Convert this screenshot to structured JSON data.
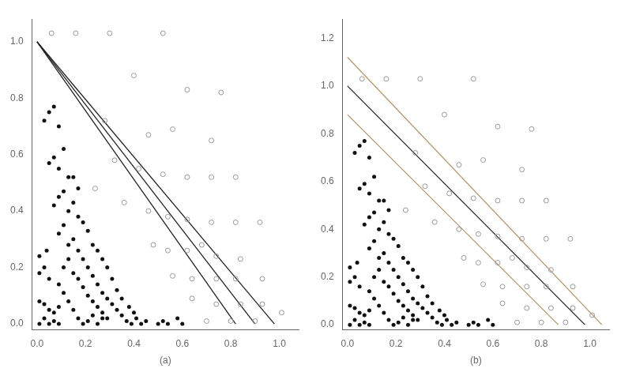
{
  "chart_data": [
    {
      "type": "scatter",
      "xlabel": "(a)",
      "xlim": [
        -0.02,
        1.08
      ],
      "ylim": [
        -0.02,
        1.08
      ],
      "xticks": [
        {
          "value": 0,
          "label": "0.0"
        },
        0.2,
        0.4,
        0.6,
        0.8,
        {
          "value": 1,
          "label": "1.0"
        }
      ],
      "yticks": [
        {
          "value": 0,
          "label": "0.0"
        },
        0.2,
        0.4,
        0.6,
        0.8,
        {
          "value": 1,
          "label": "1.0"
        }
      ],
      "grid": false,
      "series": [
        {
          "color": "#111111",
          "marker": "circle",
          "x": [
            0.01,
            0.03,
            0.05,
            0.07,
            0.09,
            0.01,
            0.03,
            0.05,
            0.07,
            0.09,
            0.01,
            0.03,
            0.05,
            0.01,
            0.04,
            0.09,
            0.11,
            0.13,
            0.15,
            0.17,
            0.19,
            0.21,
            0.23,
            0.25,
            0.27,
            0.11,
            0.13,
            0.15,
            0.17,
            0.19,
            0.21,
            0.23,
            0.25,
            0.27,
            0.29,
            0.09,
            0.11,
            0.13,
            0.15,
            0.17,
            0.19,
            0.21,
            0.23,
            0.25,
            0.27,
            0.29,
            0.31,
            0.33,
            0.35,
            0.37,
            0.39,
            0.41,
            0.43,
            0.45,
            0.07,
            0.09,
            0.11,
            0.13,
            0.15,
            0.17,
            0.19,
            0.21,
            0.23,
            0.25,
            0.27,
            0.29,
            0.31,
            0.33,
            0.35,
            0.05,
            0.07,
            0.09,
            0.11,
            0.13,
            0.15,
            0.17,
            0.03,
            0.05,
            0.07,
            0.09,
            0.5,
            0.52,
            0.54,
            0.58,
            0.6,
            0.38,
            0.4
          ],
          "y": [
            0.0,
            0.02,
            0.0,
            0.01,
            0.0,
            0.08,
            0.07,
            0.05,
            0.04,
            0.06,
            0.18,
            0.2,
            0.16,
            0.24,
            0.26,
            0.14,
            0.11,
            0.08,
            0.05,
            0.02,
            0.0,
            0.01,
            0.03,
            0.0,
            0.02,
            0.2,
            0.23,
            0.18,
            0.16,
            0.13,
            0.1,
            0.08,
            0.06,
            0.04,
            0.02,
            0.32,
            0.35,
            0.28,
            0.3,
            0.26,
            0.23,
            0.2,
            0.17,
            0.14,
            0.11,
            0.09,
            0.07,
            0.05,
            0.03,
            0.01,
            0.0,
            0.02,
            0.0,
            0.01,
            0.42,
            0.45,
            0.47,
            0.4,
            0.43,
            0.38,
            0.36,
            0.33,
            0.28,
            0.26,
            0.23,
            0.2,
            0.16,
            0.12,
            0.09,
            0.57,
            0.59,
            0.55,
            0.62,
            0.52,
            0.52,
            0.48,
            0.72,
            0.75,
            0.77,
            0.7,
            0.0,
            0.01,
            0.0,
            0.02,
            0.0,
            0.06,
            0.04
          ]
        },
        {
          "color": "#999999",
          "marker": "hollow",
          "x": [
            0.06,
            0.16,
            0.3,
            0.52,
            0.4,
            0.62,
            0.76,
            0.28,
            0.46,
            0.56,
            0.72,
            0.32,
            0.42,
            0.52,
            0.62,
            0.72,
            0.82,
            0.24,
            0.36,
            0.46,
            0.54,
            0.62,
            0.72,
            0.82,
            0.92,
            0.48,
            0.54,
            0.62,
            0.68,
            0.74,
            0.84,
            0.56,
            0.64,
            0.74,
            0.82,
            0.93,
            0.64,
            0.74,
            0.84,
            0.93,
            0.7,
            0.8,
            0.9,
            1.01
          ],
          "y": [
            1.03,
            1.03,
            1.03,
            1.03,
            0.88,
            0.83,
            0.82,
            0.72,
            0.67,
            0.69,
            0.65,
            0.58,
            0.55,
            0.53,
            0.52,
            0.52,
            0.52,
            0.48,
            0.43,
            0.4,
            0.38,
            0.37,
            0.36,
            0.36,
            0.36,
            0.28,
            0.26,
            0.26,
            0.28,
            0.24,
            0.23,
            0.17,
            0.16,
            0.16,
            0.16,
            0.16,
            0.09,
            0.07,
            0.07,
            0.07,
            0.01,
            0.01,
            0.01,
            0.04
          ]
        },
        {
          "type": "line",
          "color": "#222222",
          "x": [
            0.0,
            0.82
          ],
          "y": [
            1.0,
            0.0
          ]
        },
        {
          "type": "line",
          "color": "#222222",
          "x": [
            0.0,
            0.9
          ],
          "y": [
            1.0,
            0.0
          ]
        },
        {
          "type": "line",
          "color": "#222222",
          "x": [
            0.0,
            0.98
          ],
          "y": [
            1.0,
            0.0
          ]
        }
      ]
    },
    {
      "type": "scatter",
      "xlabel": "(b)",
      "xlim": [
        -0.02,
        1.08
      ],
      "ylim": [
        -0.02,
        1.28
      ],
      "xticks": [
        {
          "value": 0,
          "label": "0.0"
        },
        0.2,
        0.4,
        0.6,
        0.8,
        {
          "value": 1,
          "label": "1.0"
        }
      ],
      "yticks": [
        {
          "value": 0,
          "label": "0.0"
        },
        0.2,
        0.4,
        0.6,
        0.8,
        {
          "value": 1,
          "label": "1.0"
        },
        1.2
      ],
      "grid": false,
      "series": [
        {
          "color": "#111111",
          "marker": "circle",
          "x": [
            0.01,
            0.03,
            0.05,
            0.07,
            0.09,
            0.01,
            0.03,
            0.05,
            0.07,
            0.09,
            0.01,
            0.03,
            0.05,
            0.01,
            0.04,
            0.09,
            0.11,
            0.13,
            0.15,
            0.17,
            0.19,
            0.21,
            0.23,
            0.25,
            0.27,
            0.11,
            0.13,
            0.15,
            0.17,
            0.19,
            0.21,
            0.23,
            0.25,
            0.27,
            0.29,
            0.09,
            0.11,
            0.13,
            0.15,
            0.17,
            0.19,
            0.21,
            0.23,
            0.25,
            0.27,
            0.29,
            0.31,
            0.33,
            0.35,
            0.37,
            0.39,
            0.41,
            0.43,
            0.45,
            0.07,
            0.09,
            0.11,
            0.13,
            0.15,
            0.17,
            0.19,
            0.21,
            0.23,
            0.25,
            0.27,
            0.29,
            0.31,
            0.33,
            0.35,
            0.05,
            0.07,
            0.09,
            0.11,
            0.13,
            0.15,
            0.17,
            0.03,
            0.05,
            0.07,
            0.09,
            0.5,
            0.52,
            0.54,
            0.58,
            0.6,
            0.38,
            0.4
          ],
          "y": [
            0.0,
            0.02,
            0.0,
            0.01,
            0.0,
            0.08,
            0.07,
            0.05,
            0.04,
            0.06,
            0.18,
            0.2,
            0.16,
            0.24,
            0.26,
            0.14,
            0.11,
            0.08,
            0.05,
            0.02,
            0.0,
            0.01,
            0.03,
            0.0,
            0.02,
            0.2,
            0.23,
            0.18,
            0.16,
            0.13,
            0.1,
            0.08,
            0.06,
            0.04,
            0.02,
            0.32,
            0.35,
            0.28,
            0.3,
            0.26,
            0.23,
            0.2,
            0.17,
            0.14,
            0.11,
            0.09,
            0.07,
            0.05,
            0.03,
            0.01,
            0.0,
            0.02,
            0.0,
            0.01,
            0.42,
            0.45,
            0.47,
            0.4,
            0.43,
            0.38,
            0.36,
            0.33,
            0.28,
            0.26,
            0.23,
            0.2,
            0.16,
            0.12,
            0.09,
            0.57,
            0.59,
            0.55,
            0.62,
            0.52,
            0.52,
            0.48,
            0.72,
            0.75,
            0.77,
            0.7,
            0.0,
            0.01,
            0.0,
            0.02,
            0.0,
            0.06,
            0.04
          ]
        },
        {
          "color": "#999999",
          "marker": "hollow",
          "x": [
            0.06,
            0.16,
            0.3,
            0.52,
            0.4,
            0.62,
            0.76,
            0.28,
            0.46,
            0.56,
            0.72,
            0.32,
            0.42,
            0.52,
            0.62,
            0.72,
            0.82,
            0.24,
            0.36,
            0.46,
            0.54,
            0.62,
            0.72,
            0.82,
            0.92,
            0.48,
            0.54,
            0.62,
            0.68,
            0.74,
            0.84,
            0.56,
            0.64,
            0.74,
            0.82,
            0.93,
            0.64,
            0.74,
            0.84,
            0.93,
            0.7,
            0.8,
            0.9,
            1.01
          ],
          "y": [
            1.03,
            1.03,
            1.03,
            1.03,
            0.88,
            0.83,
            0.82,
            0.72,
            0.67,
            0.69,
            0.65,
            0.58,
            0.55,
            0.53,
            0.52,
            0.52,
            0.52,
            0.48,
            0.43,
            0.4,
            0.38,
            0.37,
            0.36,
            0.36,
            0.36,
            0.28,
            0.26,
            0.26,
            0.28,
            0.24,
            0.23,
            0.17,
            0.16,
            0.16,
            0.16,
            0.16,
            0.09,
            0.07,
            0.07,
            0.07,
            0.01,
            0.01,
            0.01,
            0.04
          ]
        },
        {
          "type": "line",
          "color": "#b8956a",
          "x": [
            0.0,
            1.05
          ],
          "y": [
            1.12,
            0.0
          ]
        },
        {
          "type": "line",
          "color": "#b8956a",
          "x": [
            0.0,
            0.87
          ],
          "y": [
            0.88,
            0.0
          ]
        },
        {
          "type": "line",
          "color": "#222222",
          "x": [
            0.0,
            0.98
          ],
          "y": [
            1.0,
            0.0
          ]
        }
      ]
    }
  ]
}
